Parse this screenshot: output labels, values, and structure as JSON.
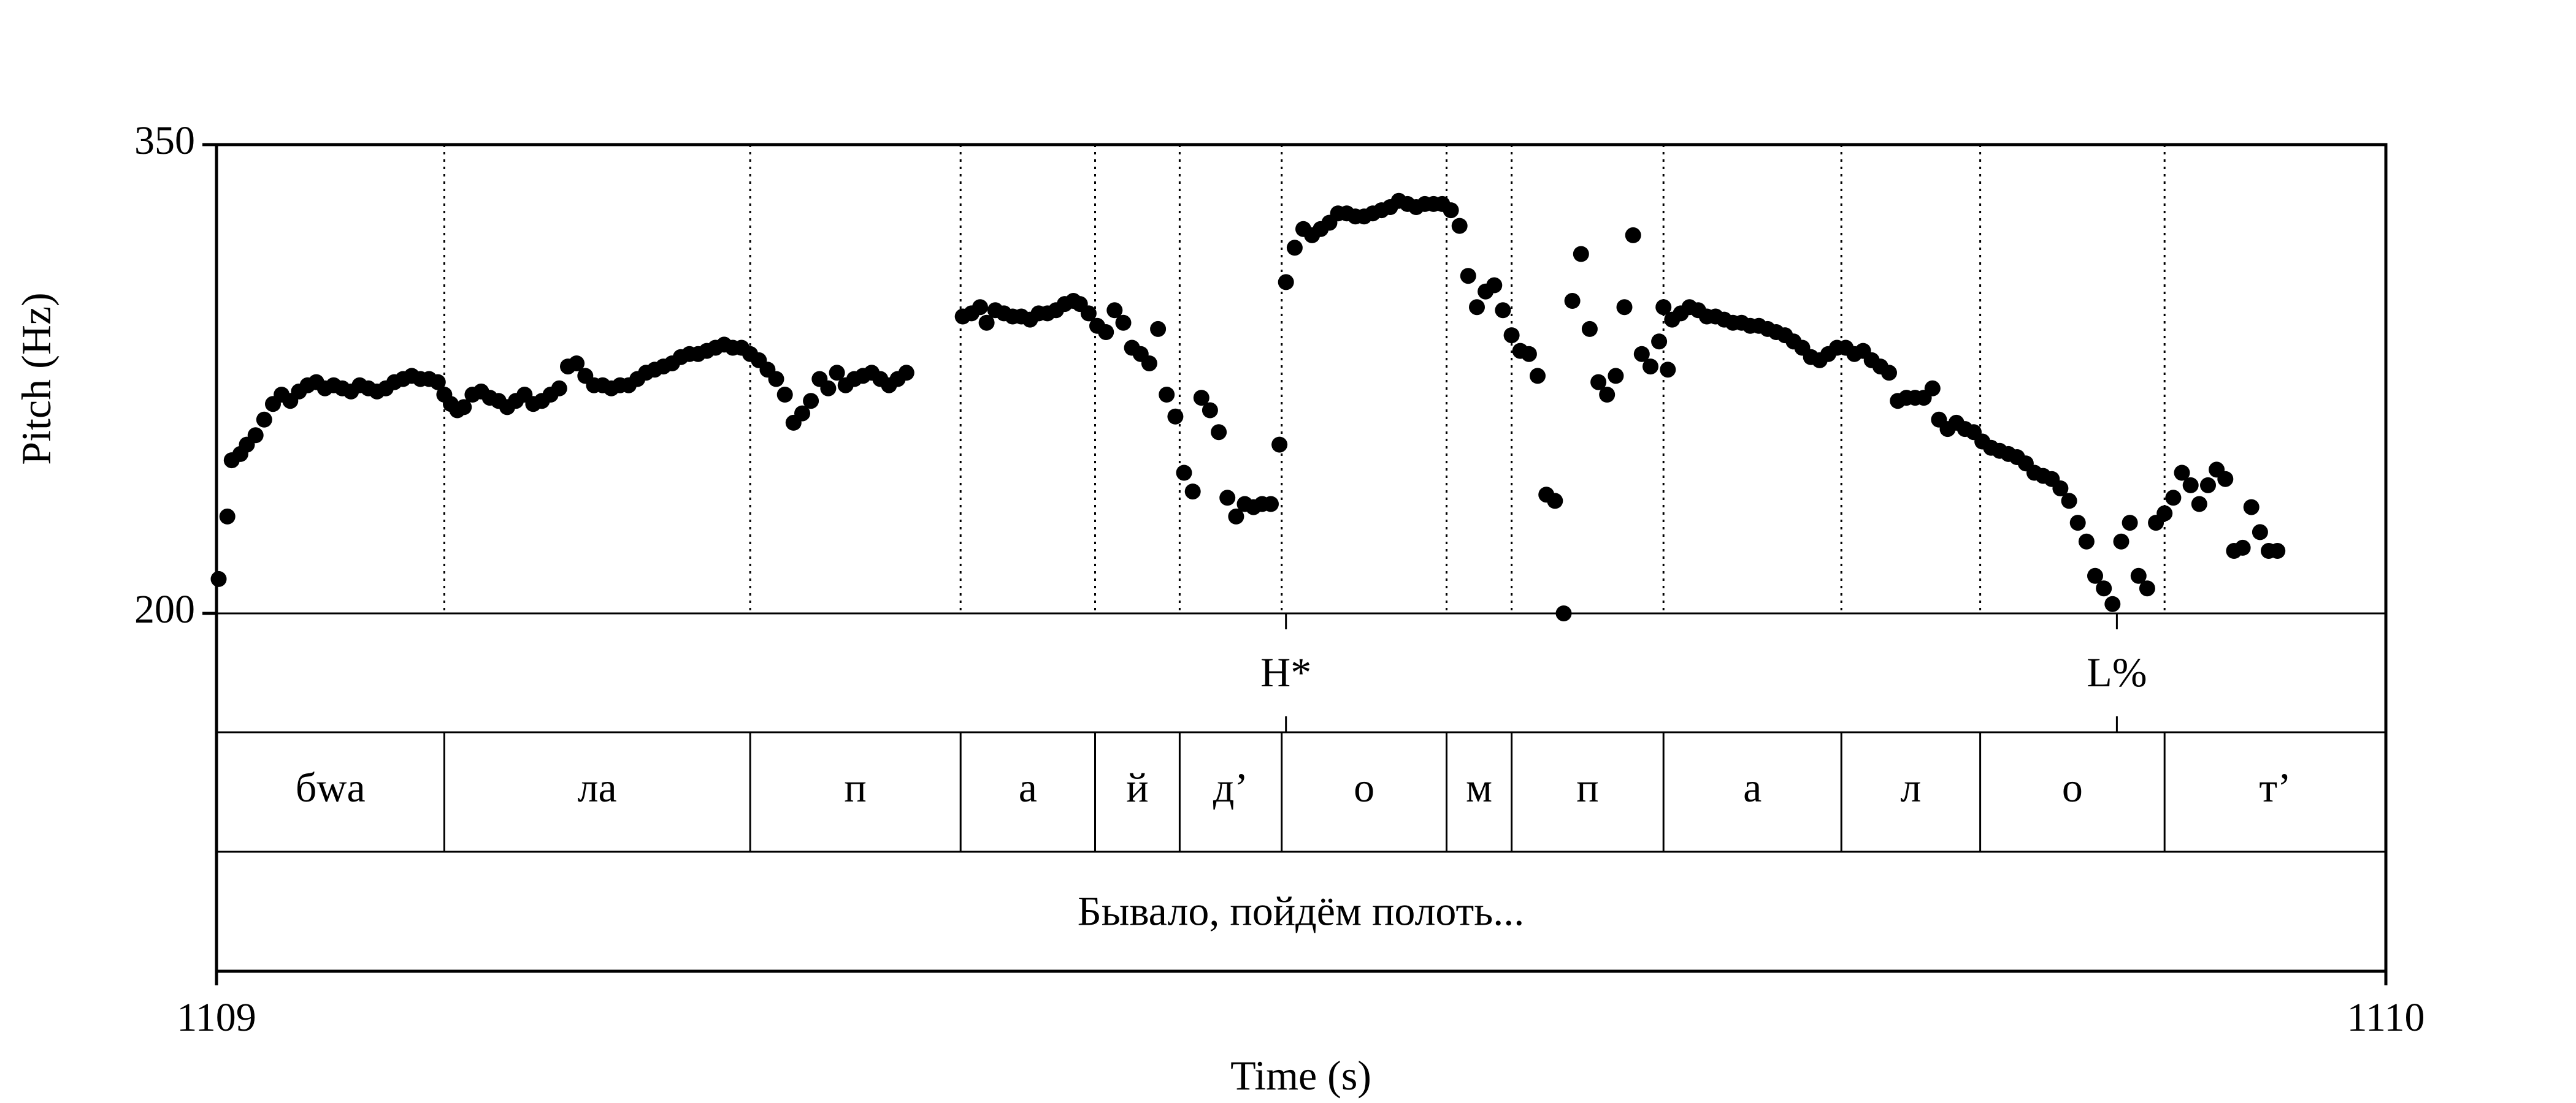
{
  "chart_data": {
    "type": "scatter",
    "xlabel": "Time (s)",
    "ylabel": "Pitch (Hz)",
    "xlim": [
      1109,
      1110
    ],
    "ylim": [
      200,
      350
    ],
    "x_tick_labels": [
      "1109",
      "1110"
    ],
    "y_tick_labels": [
      "350",
      "200"
    ],
    "grid": false,
    "point_color": "#000000",
    "series": [
      {
        "values": [
          [
            1109.001,
            211
          ],
          [
            1109.005,
            231
          ],
          [
            1109.007,
            249
          ],
          [
            1109.011,
            251
          ],
          [
            1109.014,
            254
          ],
          [
            1109.018,
            257
          ],
          [
            1109.022,
            262
          ],
          [
            1109.026,
            267
          ],
          [
            1109.03,
            270
          ],
          [
            1109.034,
            268
          ],
          [
            1109.038,
            271
          ],
          [
            1109.042,
            273
          ],
          [
            1109.046,
            274
          ],
          [
            1109.05,
            272
          ],
          [
            1109.054,
            273
          ],
          [
            1109.058,
            272
          ],
          [
            1109.062,
            271
          ],
          [
            1109.066,
            273
          ],
          [
            1109.07,
            272
          ],
          [
            1109.074,
            271
          ],
          [
            1109.078,
            272
          ],
          [
            1109.082,
            274
          ],
          [
            1109.086,
            275
          ],
          [
            1109.09,
            276
          ],
          [
            1109.094,
            275
          ],
          [
            1109.098,
            275
          ],
          [
            1109.102,
            274
          ],
          [
            1109.105,
            270
          ],
          [
            1109.108,
            267
          ],
          [
            1109.111,
            265
          ],
          [
            1109.114,
            266
          ],
          [
            1109.118,
            270
          ],
          [
            1109.122,
            271
          ],
          [
            1109.126,
            269
          ],
          [
            1109.13,
            268
          ],
          [
            1109.134,
            266
          ],
          [
            1109.138,
            268
          ],
          [
            1109.142,
            270
          ],
          [
            1109.146,
            267
          ],
          [
            1109.15,
            268
          ],
          [
            1109.154,
            270
          ],
          [
            1109.158,
            272
          ],
          [
            1109.162,
            279
          ],
          [
            1109.166,
            280
          ],
          [
            1109.17,
            276
          ],
          [
            1109.174,
            273
          ],
          [
            1109.178,
            273
          ],
          [
            1109.182,
            272
          ],
          [
            1109.186,
            273
          ],
          [
            1109.19,
            273
          ],
          [
            1109.194,
            275
          ],
          [
            1109.198,
            277
          ],
          [
            1109.202,
            278
          ],
          [
            1109.206,
            279
          ],
          [
            1109.21,
            280
          ],
          [
            1109.214,
            282
          ],
          [
            1109.218,
            283
          ],
          [
            1109.222,
            283
          ],
          [
            1109.226,
            284
          ],
          [
            1109.23,
            285
          ],
          [
            1109.234,
            286
          ],
          [
            1109.238,
            285
          ],
          [
            1109.242,
            285
          ],
          [
            1109.246,
            283
          ],
          [
            1109.25,
            281
          ],
          [
            1109.254,
            278
          ],
          [
            1109.258,
            275
          ],
          [
            1109.262,
            270
          ],
          [
            1109.266,
            261
          ],
          [
            1109.27,
            264
          ],
          [
            1109.274,
            268
          ],
          [
            1109.278,
            275
          ],
          [
            1109.282,
            272
          ],
          [
            1109.286,
            277
          ],
          [
            1109.29,
            273
          ],
          [
            1109.294,
            275
          ],
          [
            1109.298,
            276
          ],
          [
            1109.302,
            277
          ],
          [
            1109.306,
            275
          ],
          [
            1109.31,
            273
          ],
          [
            1109.314,
            275
          ],
          [
            1109.318,
            277
          ],
          [
            1109.344,
            295
          ],
          [
            1109.348,
            296
          ],
          [
            1109.352,
            298
          ],
          [
            1109.355,
            293
          ],
          [
            1109.359,
            297
          ],
          [
            1109.363,
            296
          ],
          [
            1109.367,
            295
          ],
          [
            1109.371,
            295
          ],
          [
            1109.375,
            294
          ],
          [
            1109.379,
            296
          ],
          [
            1109.383,
            296
          ],
          [
            1109.387,
            297
          ],
          [
            1109.391,
            299
          ],
          [
            1109.395,
            300
          ],
          [
            1109.398,
            299
          ],
          [
            1109.402,
            296
          ],
          [
            1109.406,
            292
          ],
          [
            1109.41,
            290
          ],
          [
            1109.414,
            297
          ],
          [
            1109.418,
            293
          ],
          [
            1109.422,
            285
          ],
          [
            1109.426,
            283
          ],
          [
            1109.43,
            280
          ],
          [
            1109.434,
            291
          ],
          [
            1109.438,
            270
          ],
          [
            1109.442,
            263
          ],
          [
            1109.446,
            245
          ],
          [
            1109.45,
            239
          ],
          [
            1109.454,
            269
          ],
          [
            1109.458,
            265
          ],
          [
            1109.462,
            258
          ],
          [
            1109.466,
            237
          ],
          [
            1109.47,
            231
          ],
          [
            1109.474,
            235
          ],
          [
            1109.478,
            234
          ],
          [
            1109.482,
            235
          ],
          [
            1109.486,
            235
          ],
          [
            1109.49,
            254
          ],
          [
            1109.493,
            306
          ],
          [
            1109.497,
            317
          ],
          [
            1109.501,
            323
          ],
          [
            1109.505,
            321
          ],
          [
            1109.509,
            323
          ],
          [
            1109.513,
            325
          ],
          [
            1109.517,
            328
          ],
          [
            1109.521,
            328
          ],
          [
            1109.525,
            327
          ],
          [
            1109.529,
            327
          ],
          [
            1109.533,
            328
          ],
          [
            1109.537,
            329
          ],
          [
            1109.541,
            330
          ],
          [
            1109.545,
            332
          ],
          [
            1109.549,
            331
          ],
          [
            1109.553,
            330
          ],
          [
            1109.557,
            331
          ],
          [
            1109.561,
            331
          ],
          [
            1109.565,
            331
          ],
          [
            1109.569,
            329
          ],
          [
            1109.573,
            324
          ],
          [
            1109.577,
            308
          ],
          [
            1109.581,
            298
          ],
          [
            1109.585,
            303
          ],
          [
            1109.589,
            305
          ],
          [
            1109.593,
            297
          ],
          [
            1109.597,
            289
          ],
          [
            1109.601,
            284
          ],
          [
            1109.605,
            283
          ],
          [
            1109.609,
            276
          ],
          [
            1109.613,
            238
          ],
          [
            1109.617,
            236
          ],
          [
            1109.621,
            200
          ],
          [
            1109.625,
            300
          ],
          [
            1109.629,
            315
          ],
          [
            1109.633,
            291
          ],
          [
            1109.637,
            274
          ],
          [
            1109.641,
            270
          ],
          [
            1109.645,
            276
          ],
          [
            1109.649,
            298
          ],
          [
            1109.653,
            321
          ],
          [
            1109.657,
            283
          ],
          [
            1109.661,
            279
          ],
          [
            1109.665,
            287
          ],
          [
            1109.669,
            278
          ],
          [
            1109.667,
            298
          ],
          [
            1109.671,
            294
          ],
          [
            1109.675,
            296
          ],
          [
            1109.679,
            298
          ],
          [
            1109.683,
            297
          ],
          [
            1109.687,
            295
          ],
          [
            1109.691,
            295
          ],
          [
            1109.695,
            294
          ],
          [
            1109.699,
            293
          ],
          [
            1109.703,
            293
          ],
          [
            1109.707,
            292
          ],
          [
            1109.711,
            292
          ],
          [
            1109.715,
            291
          ],
          [
            1109.719,
            290
          ],
          [
            1109.723,
            289
          ],
          [
            1109.727,
            287
          ],
          [
            1109.731,
            285
          ],
          [
            1109.735,
            282
          ],
          [
            1109.739,
            281
          ],
          [
            1109.743,
            283
          ],
          [
            1109.747,
            285
          ],
          [
            1109.751,
            285
          ],
          [
            1109.755,
            283
          ],
          [
            1109.759,
            284
          ],
          [
            1109.763,
            281
          ],
          [
            1109.767,
            279
          ],
          [
            1109.771,
            277
          ],
          [
            1109.775,
            268
          ],
          [
            1109.779,
            269
          ],
          [
            1109.783,
            269
          ],
          [
            1109.787,
            269
          ],
          [
            1109.791,
            272
          ],
          [
            1109.794,
            262
          ],
          [
            1109.798,
            259
          ],
          [
            1109.802,
            261
          ],
          [
            1109.806,
            259
          ],
          [
            1109.81,
            258
          ],
          [
            1109.814,
            255
          ],
          [
            1109.818,
            253
          ],
          [
            1109.822,
            252
          ],
          [
            1109.826,
            251
          ],
          [
            1109.83,
            250
          ],
          [
            1109.834,
            248
          ],
          [
            1109.838,
            245
          ],
          [
            1109.842,
            244
          ],
          [
            1109.846,
            243
          ],
          [
            1109.85,
            240
          ],
          [
            1109.854,
            236
          ],
          [
            1109.858,
            229
          ],
          [
            1109.862,
            223
          ],
          [
            1109.866,
            212
          ],
          [
            1109.87,
            208
          ],
          [
            1109.874,
            203
          ],
          [
            1109.878,
            223
          ],
          [
            1109.882,
            229
          ],
          [
            1109.886,
            212
          ],
          [
            1109.89,
            208
          ],
          [
            1109.894,
            229
          ],
          [
            1109.898,
            232
          ],
          [
            1109.902,
            237
          ],
          [
            1109.906,
            245
          ],
          [
            1109.91,
            241
          ],
          [
            1109.914,
            235
          ],
          [
            1109.918,
            241
          ],
          [
            1109.922,
            246
          ],
          [
            1109.926,
            243
          ],
          [
            1109.93,
            220
          ],
          [
            1109.934,
            221
          ],
          [
            1109.938,
            234
          ],
          [
            1109.942,
            226
          ],
          [
            1109.946,
            220
          ],
          [
            1109.95,
            220
          ]
        ]
      }
    ],
    "tones": [
      {
        "label": "H*",
        "time": 1109.493
      },
      {
        "label": "L%",
        "time": 1109.876
      }
    ],
    "segments": [
      {
        "label": "бwa",
        "start": 1109.0,
        "end": 1109.105
      },
      {
        "label": "ла",
        "start": 1109.105,
        "end": 1109.246
      },
      {
        "label": "п",
        "start": 1109.246,
        "end": 1109.343
      },
      {
        "label": "а",
        "start": 1109.343,
        "end": 1109.405
      },
      {
        "label": "й",
        "start": 1109.405,
        "end": 1109.444
      },
      {
        "label": "д’",
        "start": 1109.444,
        "end": 1109.491
      },
      {
        "label": "о",
        "start": 1109.491,
        "end": 1109.567
      },
      {
        "label": "м",
        "start": 1109.567,
        "end": 1109.597
      },
      {
        "label": "п",
        "start": 1109.597,
        "end": 1109.667
      },
      {
        "label": "а",
        "start": 1109.667,
        "end": 1109.749
      },
      {
        "label": "л",
        "start": 1109.749,
        "end": 1109.813
      },
      {
        "label": "о",
        "start": 1109.813,
        "end": 1109.898
      },
      {
        "label": "т’",
        "start": 1109.898,
        "end": 1110.0
      }
    ],
    "sentence": "Бывало, пойдём полоть..."
  }
}
